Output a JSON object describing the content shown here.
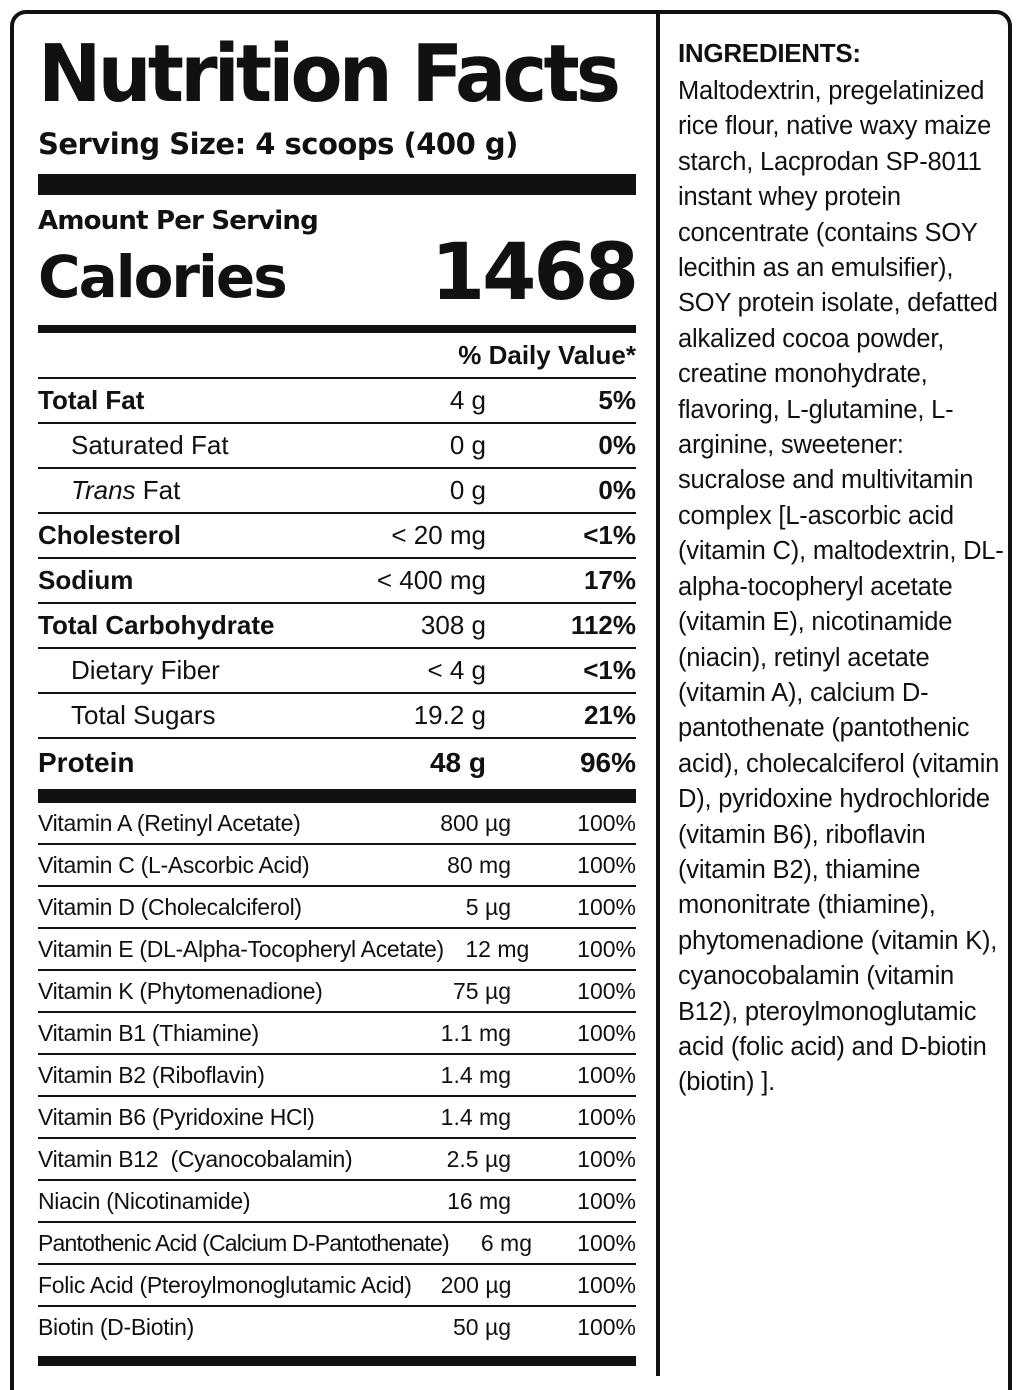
{
  "panel": {
    "title": "Nutrition Facts",
    "serving_size": "Serving Size: 4 scoops (400 g)",
    "amount_per_serving": "Amount Per Serving",
    "calories_label": "Calories",
    "calories_value": "1468",
    "daily_value_header": "% Daily Value*"
  },
  "nutrients": [
    {
      "name": "Total Fat",
      "amount": "4 g",
      "dv": "5%"
    },
    {
      "name": "Saturated Fat",
      "amount": "0 g",
      "dv": "0%"
    },
    {
      "name_italic": "Trans",
      "name_rest": " Fat",
      "amount": "0 g",
      "dv": "0%"
    },
    {
      "name": "Cholesterol",
      "amount": "< 20 mg",
      "dv": "<1%"
    },
    {
      "name": "Sodium",
      "amount": "< 400 mg",
      "dv": "17%"
    },
    {
      "name": "Total Carbohydrate",
      "amount": "308 g",
      "dv": "112%"
    },
    {
      "name": "Dietary Fiber",
      "amount": "< 4 g",
      "dv": "<1%"
    },
    {
      "name": "Total Sugars",
      "amount": "19.2 g",
      "dv": "21%"
    },
    {
      "name": "Protein",
      "amount": "48 g",
      "dv": "96%"
    }
  ],
  "vitamins": [
    {
      "name": "Vitamin A (Retinyl Acetate)",
      "amount": "800 µg",
      "dv": "100%"
    },
    {
      "name": "Vitamin C (L-Ascorbic Acid)",
      "amount": "80 mg",
      "dv": "100%"
    },
    {
      "name": "Vitamin D (Cholecalciferol)",
      "amount": "5 µg",
      "dv": "100%"
    },
    {
      "name": "Vitamin E (DL-Alpha-Tocopheryl Acetate)",
      "amount": "12 mg",
      "dv": "100%"
    },
    {
      "name": "Vitamin K (Phytomenadione)",
      "amount": "75 µg",
      "dv": "100%"
    },
    {
      "name": "Vitamin B1 (Thiamine)",
      "amount": "1.1 mg",
      "dv": "100%"
    },
    {
      "name": "Vitamin B2 (Riboflavin)",
      "amount": "1.4 mg",
      "dv": "100%"
    },
    {
      "name": "Vitamin B6 (Pyridoxine HCl)",
      "amount": "1.4 mg",
      "dv": "100%"
    },
    {
      "name": "Vitamin B12  (Cyanocobalamin)",
      "amount": "2.5 µg",
      "dv": "100%"
    },
    {
      "name": "Niacin (Nicotinamide)",
      "amount": "16 mg",
      "dv": "100%"
    },
    {
      "name": "Pantothenic Acid (Calcium D-Pantothenate)",
      "amount": "6 mg",
      "dv": "100%"
    },
    {
      "name": "Folic Acid (Pteroylmonoglutamic Acid)",
      "amount": "200 µg",
      "dv": "100%"
    },
    {
      "name": "Biotin (D-Biotin)",
      "amount": "50 µg",
      "dv": "100%"
    }
  ],
  "ingredients": {
    "title": "INGREDIENTS:",
    "text": "Maltodextrin, pregelatinized rice flour, native waxy maize starch, Lacprodan SP-8011 instant whey protein concentrate (contains SOY lecithin as an emulsifier), SOY protein isolate, defatted alkalized cocoa powder, creatine monohydrate, flavoring, L-glutamine, L-arginine, sweetener: sucralose and multivitamin complex [L-ascorbic acid (vitamin C), maltodextrin, DL-alpha-tocopheryl acetate (vitamin E), nicotinamide (niacin), retinyl acetate (vitamin A), calcium D-pantothenate (pantothenic acid), cholecalciferol (vitamin D), pyridoxine hydrochloride (vitamin B6), riboflavin (vitamin B2), thiamine mononitrate (thiamine), phytomenadione (vitamin K), cyanocobalamin (vitamin B12), pteroylmonoglutamic acid (folic acid) and D-biotin (biotin) ]."
  }
}
